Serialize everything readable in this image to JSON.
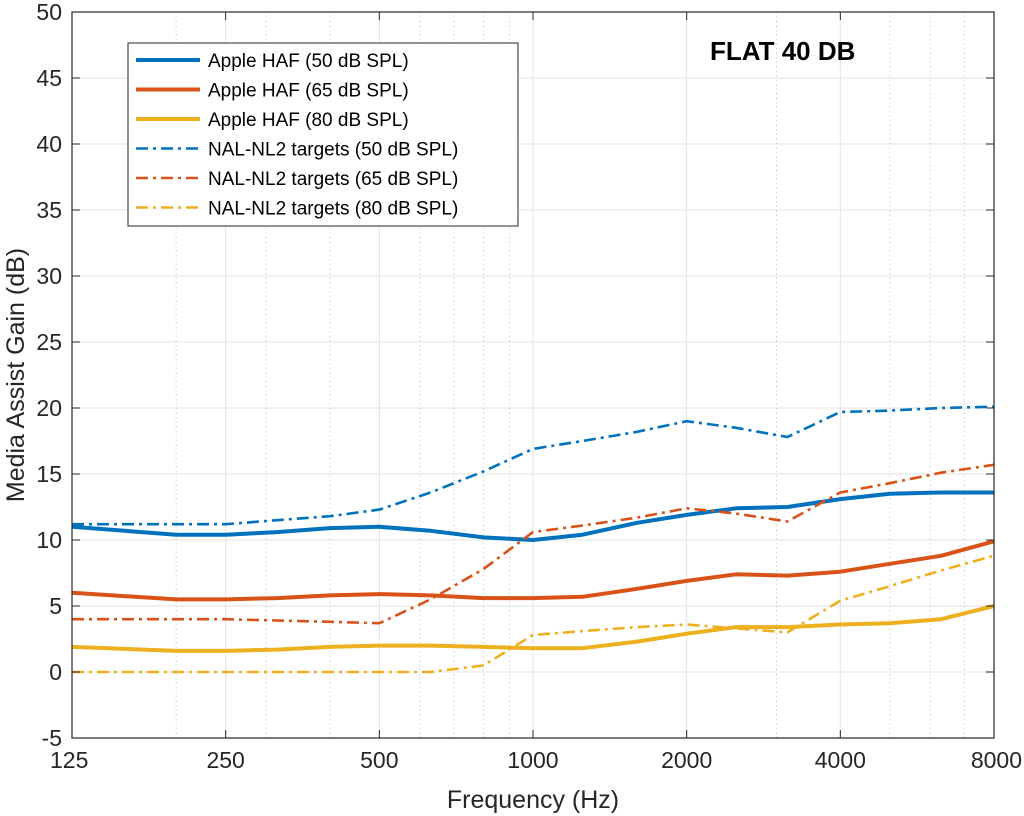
{
  "chart_data": {
    "type": "line",
    "title": "",
    "annotation": "FLAT 40 DB",
    "xlabel": "Frequency (Hz)",
    "ylabel": "Media Assist Gain (dB)",
    "xscale": "log",
    "xlim": [
      125,
      8000
    ],
    "ylim": [
      -5,
      50
    ],
    "xticks": [
      125,
      250,
      500,
      1000,
      2000,
      4000,
      8000
    ],
    "xtick_labels": [
      "125",
      "250",
      "500",
      "1000",
      "2000",
      "4000",
      "8000"
    ],
    "yticks": [
      -5,
      0,
      5,
      10,
      15,
      20,
      25,
      30,
      35,
      40,
      45,
      50
    ],
    "ytick_labels": [
      "-5",
      "0",
      "5",
      "10",
      "15",
      "20",
      "25",
      "30",
      "35",
      "40",
      "45",
      "50"
    ],
    "grid": true,
    "legend_position": "top-left",
    "series": [
      {
        "name": "Apple HAF (50 dB SPL)",
        "color": "#0072BD",
        "style": "solid",
        "x": [
          125,
          200,
          250,
          315,
          400,
          500,
          630,
          800,
          1000,
          1250,
          1600,
          2000,
          2500,
          3150,
          4000,
          5000,
          6300,
          8000
        ],
        "y": [
          11.0,
          10.4,
          10.4,
          10.6,
          10.9,
          11.0,
          10.7,
          10.2,
          10.0,
          10.4,
          11.3,
          11.9,
          12.4,
          12.5,
          13.1,
          13.5,
          13.6,
          13.6
        ]
      },
      {
        "name": "Apple HAF (65 dB SPL)",
        "color": "#D95319",
        "style": "solid",
        "x": [
          125,
          200,
          250,
          315,
          400,
          500,
          630,
          800,
          1000,
          1250,
          1600,
          2000,
          2500,
          3150,
          4000,
          5000,
          6300,
          8000
        ],
        "y": [
          6.0,
          5.5,
          5.5,
          5.6,
          5.8,
          5.9,
          5.8,
          5.6,
          5.6,
          5.7,
          6.3,
          6.9,
          7.4,
          7.3,
          7.6,
          8.2,
          8.8,
          9.9
        ]
      },
      {
        "name": "Apple HAF (80 dB SPL)",
        "color": "#EDB120",
        "style": "solid",
        "x": [
          125,
          200,
          250,
          315,
          400,
          500,
          630,
          800,
          1000,
          1250,
          1600,
          2000,
          2500,
          3150,
          4000,
          5000,
          6300,
          8000
        ],
        "y": [
          1.9,
          1.6,
          1.6,
          1.7,
          1.9,
          2.0,
          2.0,
          1.9,
          1.8,
          1.8,
          2.3,
          2.9,
          3.4,
          3.4,
          3.6,
          3.7,
          4.0,
          5.0
        ]
      },
      {
        "name": "NAL-NL2 targets (50 dB SPL)",
        "color": "#0072BD",
        "style": "dashdot",
        "x": [
          125,
          200,
          250,
          315,
          400,
          500,
          630,
          800,
          1000,
          1250,
          1600,
          2000,
          2500,
          3150,
          4000,
          5000,
          6300,
          8000
        ],
        "y": [
          11.2,
          11.2,
          11.2,
          11.5,
          11.8,
          12.3,
          13.6,
          15.2,
          16.9,
          17.5,
          18.2,
          19.0,
          18.5,
          17.8,
          19.7,
          19.8,
          20.0,
          20.1
        ]
      },
      {
        "name": "NAL-NL2 targets (65 dB SPL)",
        "color": "#D95319",
        "style": "dashdot",
        "x": [
          125,
          200,
          250,
          315,
          400,
          500,
          630,
          800,
          1000,
          1250,
          1600,
          2000,
          2500,
          3150,
          4000,
          5000,
          6300,
          8000
        ],
        "y": [
          4.0,
          4.0,
          4.0,
          3.9,
          3.8,
          3.7,
          5.5,
          7.8,
          10.6,
          11.1,
          11.7,
          12.4,
          12.0,
          11.4,
          13.6,
          14.3,
          15.1,
          15.7
        ]
      },
      {
        "name": "NAL-NL2 targets (80 dB SPL)",
        "color": "#EDB120",
        "style": "dashdot",
        "x": [
          125,
          200,
          250,
          315,
          400,
          500,
          630,
          800,
          1000,
          1250,
          1600,
          2000,
          2500,
          3150,
          4000,
          5000,
          6300,
          8000
        ],
        "y": [
          0.0,
          0.0,
          0.0,
          0.0,
          0.0,
          0.0,
          0.0,
          0.5,
          2.8,
          3.1,
          3.4,
          3.6,
          3.3,
          3.0,
          5.4,
          6.5,
          7.7,
          8.8
        ]
      }
    ]
  }
}
